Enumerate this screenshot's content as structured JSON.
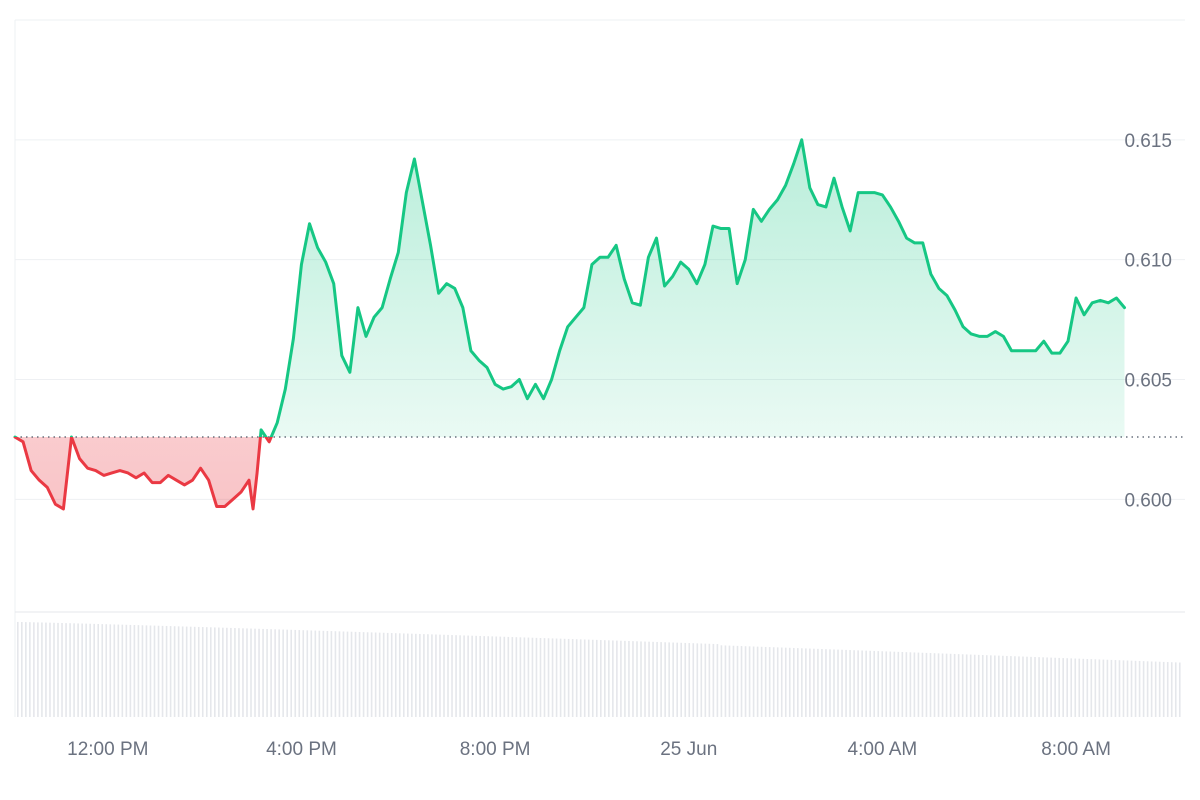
{
  "chart_data": {
    "type": "area",
    "title": "",
    "xlabel": "",
    "ylabel": "",
    "x_ticks": [
      "12:00 PM",
      "4:00 PM",
      "8:00 PM",
      "25 Jun",
      "4:00 AM",
      "8:00 AM"
    ],
    "x_tick_times": [
      "2024-06-24T12:00",
      "2024-06-24T16:00",
      "2024-06-24T20:00",
      "2024-06-25T00:00",
      "2024-06-25T04:00",
      "2024-06-25T08:00"
    ],
    "y_ticks": [
      "0.600",
      "0.605",
      "0.610",
      "0.615"
    ],
    "y_tick_values": [
      0.6,
      0.605,
      0.61,
      0.615
    ],
    "ylim": [
      0.5953,
      0.62
    ],
    "xlim": [
      "2024-06-24T10:05",
      "2024-06-25T10:15"
    ],
    "baseline": 0.6026,
    "colors": {
      "up": "#16c784",
      "down": "#ea3943",
      "grid": "#eef0f3",
      "volume": "#e5e7eb",
      "axis_text": "#6b7280"
    },
    "grid": true,
    "series": [
      {
        "values": [
          [
            "2024-06-24T10:05",
            0.6026
          ],
          [
            "2024-06-24T10:15",
            0.6024
          ],
          [
            "2024-06-24T10:25",
            0.6012
          ],
          [
            "2024-06-24T10:35",
            0.6008
          ],
          [
            "2024-06-24T10:45",
            0.6005
          ],
          [
            "2024-06-24T10:55",
            0.5998
          ],
          [
            "2024-06-24T11:05",
            0.5996
          ],
          [
            "2024-06-24T11:15",
            0.6026
          ],
          [
            "2024-06-24T11:25",
            0.6017
          ],
          [
            "2024-06-24T11:35",
            0.6013
          ],
          [
            "2024-06-24T11:45",
            0.6012
          ],
          [
            "2024-06-24T11:55",
            0.601
          ],
          [
            "2024-06-24T12:05",
            0.6011
          ],
          [
            "2024-06-24T12:15",
            0.6012
          ],
          [
            "2024-06-24T12:25",
            0.6011
          ],
          [
            "2024-06-24T12:35",
            0.6009
          ],
          [
            "2024-06-24T12:45",
            0.6011
          ],
          [
            "2024-06-24T12:55",
            0.6007
          ],
          [
            "2024-06-24T13:05",
            0.6007
          ],
          [
            "2024-06-24T13:15",
            0.601
          ],
          [
            "2024-06-24T13:25",
            0.6008
          ],
          [
            "2024-06-24T13:35",
            0.6006
          ],
          [
            "2024-06-24T13:45",
            0.6008
          ],
          [
            "2024-06-24T13:55",
            0.6013
          ],
          [
            "2024-06-24T14:05",
            0.6008
          ],
          [
            "2024-06-24T14:15",
            0.5997
          ],
          [
            "2024-06-24T14:25",
            0.5997
          ],
          [
            "2024-06-24T14:35",
            0.6
          ],
          [
            "2024-06-24T14:45",
            0.6003
          ],
          [
            "2024-06-24T14:55",
            0.6008
          ],
          [
            "2024-06-24T15:00",
            0.5996
          ],
          [
            "2024-06-24T15:05",
            0.6011
          ],
          [
            "2024-06-24T15:10",
            0.6029
          ],
          [
            "2024-06-24T15:20",
            0.6024
          ],
          [
            "2024-06-24T15:30",
            0.6032
          ],
          [
            "2024-06-24T15:40",
            0.6046
          ],
          [
            "2024-06-24T15:50",
            0.6067
          ],
          [
            "2024-06-24T16:00",
            0.6098
          ],
          [
            "2024-06-24T16:10",
            0.6115
          ],
          [
            "2024-06-24T16:20",
            0.6105
          ],
          [
            "2024-06-24T16:30",
            0.6099
          ],
          [
            "2024-06-24T16:40",
            0.609
          ],
          [
            "2024-06-24T16:50",
            0.606
          ],
          [
            "2024-06-24T17:00",
            0.6053
          ],
          [
            "2024-06-24T17:10",
            0.608
          ],
          [
            "2024-06-24T17:20",
            0.6068
          ],
          [
            "2024-06-24T17:30",
            0.6076
          ],
          [
            "2024-06-24T17:40",
            0.608
          ],
          [
            "2024-06-24T17:50",
            0.6092
          ],
          [
            "2024-06-24T18:00",
            0.6103
          ],
          [
            "2024-06-24T18:10",
            0.6128
          ],
          [
            "2024-06-24T18:20",
            0.6142
          ],
          [
            "2024-06-24T18:30",
            0.6124
          ],
          [
            "2024-06-24T18:40",
            0.6106
          ],
          [
            "2024-06-24T18:50",
            0.6086
          ],
          [
            "2024-06-24T19:00",
            0.609
          ],
          [
            "2024-06-24T19:10",
            0.6088
          ],
          [
            "2024-06-24T19:20",
            0.608
          ],
          [
            "2024-06-24T19:30",
            0.6062
          ],
          [
            "2024-06-24T19:40",
            0.6058
          ],
          [
            "2024-06-24T19:50",
            0.6055
          ],
          [
            "2024-06-24T20:00",
            0.6048
          ],
          [
            "2024-06-24T20:10",
            0.6046
          ],
          [
            "2024-06-24T20:20",
            0.6047
          ],
          [
            "2024-06-24T20:30",
            0.605
          ],
          [
            "2024-06-24T20:40",
            0.6042
          ],
          [
            "2024-06-24T20:50",
            0.6048
          ],
          [
            "2024-06-24T21:00",
            0.6042
          ],
          [
            "2024-06-24T21:10",
            0.605
          ],
          [
            "2024-06-24T21:20",
            0.6062
          ],
          [
            "2024-06-24T21:30",
            0.6072
          ],
          [
            "2024-06-24T21:40",
            0.6076
          ],
          [
            "2024-06-24T21:50",
            0.608
          ],
          [
            "2024-06-24T22:00",
            0.6098
          ],
          [
            "2024-06-24T22:10",
            0.6101
          ],
          [
            "2024-06-24T22:20",
            0.6101
          ],
          [
            "2024-06-24T22:30",
            0.6106
          ],
          [
            "2024-06-24T22:40",
            0.6092
          ],
          [
            "2024-06-24T22:50",
            0.6082
          ],
          [
            "2024-06-24T23:00",
            0.6081
          ],
          [
            "2024-06-24T23:10",
            0.6101
          ],
          [
            "2024-06-24T23:20",
            0.6109
          ],
          [
            "2024-06-24T23:30",
            0.6089
          ],
          [
            "2024-06-24T23:40",
            0.6093
          ],
          [
            "2024-06-24T23:50",
            0.6099
          ],
          [
            "2024-06-25T00:00",
            0.6096
          ],
          [
            "2024-06-25T00:10",
            0.609
          ],
          [
            "2024-06-25T00:20",
            0.6098
          ],
          [
            "2024-06-25T00:30",
            0.6114
          ],
          [
            "2024-06-25T00:40",
            0.6113
          ],
          [
            "2024-06-25T00:50",
            0.6113
          ],
          [
            "2024-06-25T01:00",
            0.609
          ],
          [
            "2024-06-25T01:10",
            0.61
          ],
          [
            "2024-06-25T01:20",
            0.6121
          ],
          [
            "2024-06-25T01:30",
            0.6116
          ],
          [
            "2024-06-25T01:40",
            0.6121
          ],
          [
            "2024-06-25T01:50",
            0.6125
          ],
          [
            "2024-06-25T02:00",
            0.6131
          ],
          [
            "2024-06-25T02:10",
            0.614
          ],
          [
            "2024-06-25T02:20",
            0.615
          ],
          [
            "2024-06-25T02:30",
            0.613
          ],
          [
            "2024-06-25T02:40",
            0.6123
          ],
          [
            "2024-06-25T02:50",
            0.6122
          ],
          [
            "2024-06-25T03:00",
            0.6134
          ],
          [
            "2024-06-25T03:10",
            0.6122
          ],
          [
            "2024-06-25T03:20",
            0.6112
          ],
          [
            "2024-06-25T03:30",
            0.6128
          ],
          [
            "2024-06-25T03:40",
            0.6128
          ],
          [
            "2024-06-25T03:50",
            0.6128
          ],
          [
            "2024-06-25T04:00",
            0.6127
          ],
          [
            "2024-06-25T04:10",
            0.6122
          ],
          [
            "2024-06-25T04:20",
            0.6116
          ],
          [
            "2024-06-25T04:30",
            0.6109
          ],
          [
            "2024-06-25T04:40",
            0.6107
          ],
          [
            "2024-06-25T04:50",
            0.6107
          ],
          [
            "2024-06-25T05:00",
            0.6094
          ],
          [
            "2024-06-25T05:10",
            0.6088
          ],
          [
            "2024-06-25T05:20",
            0.6085
          ],
          [
            "2024-06-25T05:30",
            0.6079
          ],
          [
            "2024-06-25T05:40",
            0.6072
          ],
          [
            "2024-06-25T05:50",
            0.6069
          ],
          [
            "2024-06-25T06:00",
            0.6068
          ],
          [
            "2024-06-25T06:10",
            0.6068
          ],
          [
            "2024-06-25T06:20",
            0.607
          ],
          [
            "2024-06-25T06:30",
            0.6068
          ],
          [
            "2024-06-25T06:40",
            0.6062
          ],
          [
            "2024-06-25T06:50",
            0.6062
          ],
          [
            "2024-06-25T07:00",
            0.6062
          ],
          [
            "2024-06-25T07:10",
            0.6062
          ],
          [
            "2024-06-25T07:20",
            0.6066
          ],
          [
            "2024-06-25T07:30",
            0.6061
          ],
          [
            "2024-06-25T07:40",
            0.6061
          ],
          [
            "2024-06-25T07:50",
            0.6066
          ],
          [
            "2024-06-25T08:00",
            0.6084
          ],
          [
            "2024-06-25T08:10",
            0.6077
          ],
          [
            "2024-06-25T08:20",
            0.6082
          ],
          [
            "2024-06-25T08:30",
            0.6083
          ],
          [
            "2024-06-25T08:40",
            0.6082
          ],
          [
            "2024-06-25T08:50",
            0.6084
          ],
          [
            "2024-06-25T09:00",
            0.608
          ]
        ]
      }
    ]
  }
}
